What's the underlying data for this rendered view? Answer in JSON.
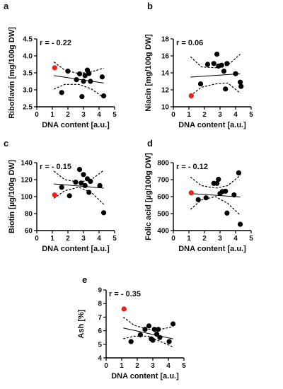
{
  "chart_data": [
    {
      "panel": "a",
      "type": "scatter",
      "corr": "r = - 0.22",
      "xlabel": "DNA content [a.u.]",
      "ylabel": "Riboflavin [mg/100g DW]",
      "xlim": [
        0,
        5
      ],
      "ylim": [
        2.5,
        4.5
      ],
      "xticks": [
        "0",
        "1",
        "2",
        "3",
        "4",
        "5"
      ],
      "yticks": [
        "2.5",
        "3.0",
        "3.5",
        "4.0",
        "4.5"
      ],
      "fit": {
        "x": [
          1.1,
          4.3
        ],
        "y": [
          3.42,
          3.2
        ]
      },
      "ci_upper": {
        "x": [
          1.1,
          1.8,
          2.7,
          3.5,
          4.3
        ],
        "y": [
          3.82,
          3.58,
          3.48,
          3.53,
          3.64
        ]
      },
      "ci_lower": {
        "x": [
          1.1,
          1.8,
          2.7,
          3.5,
          4.3
        ],
        "y": [
          3.02,
          3.16,
          3.16,
          3.03,
          2.77
        ]
      },
      "points": [
        {
          "x": 1.15,
          "y": 3.65,
          "highlight": true
        },
        {
          "x": 1.6,
          "y": 2.92
        },
        {
          "x": 2.0,
          "y": 3.55
        },
        {
          "x": 2.55,
          "y": 3.3
        },
        {
          "x": 2.75,
          "y": 3.47
        },
        {
          "x": 2.9,
          "y": 2.8
        },
        {
          "x": 3.0,
          "y": 3.25
        },
        {
          "x": 3.1,
          "y": 3.42
        },
        {
          "x": 3.25,
          "y": 3.58
        },
        {
          "x": 3.35,
          "y": 3.48
        },
        {
          "x": 3.45,
          "y": 3.25
        },
        {
          "x": 4.2,
          "y": 3.38
        },
        {
          "x": 4.3,
          "y": 2.82
        }
      ]
    },
    {
      "panel": "b",
      "type": "scatter",
      "corr": "r = 0.06",
      "xlabel": "DNA content [a.u.]",
      "ylabel": "Niacin [mg/100g DW]",
      "xlim": [
        0,
        5
      ],
      "ylim": [
        10,
        18
      ],
      "xticks": [
        "0",
        "1",
        "2",
        "3",
        "4",
        "5"
      ],
      "yticks": [
        "10",
        "12",
        "14",
        "16",
        "18"
      ],
      "fit": {
        "x": [
          1.1,
          4.3
        ],
        "y": [
          13.5,
          13.9
        ]
      },
      "ci_upper": {
        "x": [
          1.1,
          1.8,
          2.7,
          3.5,
          4.3
        ],
        "y": [
          15.9,
          14.7,
          14.6,
          14.9,
          16.2
        ]
      },
      "ci_lower": {
        "x": [
          1.1,
          1.8,
          2.7,
          3.5,
          4.3
        ],
        "y": [
          11.3,
          12.3,
          12.7,
          12.8,
          11.6
        ]
      },
      "points": [
        {
          "x": 1.15,
          "y": 11.3,
          "highlight": true
        },
        {
          "x": 1.75,
          "y": 12.7
        },
        {
          "x": 2.2,
          "y": 15.0
        },
        {
          "x": 2.6,
          "y": 15.1
        },
        {
          "x": 2.8,
          "y": 16.2
        },
        {
          "x": 2.9,
          "y": 14.8
        },
        {
          "x": 3.1,
          "y": 14.9
        },
        {
          "x": 3.25,
          "y": 14.2
        },
        {
          "x": 3.35,
          "y": 12.1
        },
        {
          "x": 3.45,
          "y": 15.1
        },
        {
          "x": 4.0,
          "y": 13.9
        },
        {
          "x": 4.3,
          "y": 12.9
        },
        {
          "x": 4.35,
          "y": 12.4
        }
      ]
    },
    {
      "panel": "c",
      "type": "scatter",
      "corr": "r = - 0.15",
      "xlabel": "DNA content [a.u.]",
      "ylabel": "Biotin [µg/100g DW]",
      "xlim": [
        0,
        5
      ],
      "ylim": [
        60,
        140
      ],
      "xticks": [
        "0",
        "1",
        "2",
        "3",
        "4",
        "5"
      ],
      "yticks": [
        "60",
        "80",
        "100",
        "120",
        "140"
      ],
      "fit": {
        "x": [
          1.1,
          4.3
        ],
        "y": [
          115,
          110
        ]
      },
      "ci_upper": {
        "x": [
          1.1,
          1.8,
          2.7,
          3.5,
          4.3
        ],
        "y": [
          130,
          120,
          117,
          120,
          131
        ]
      },
      "ci_lower": {
        "x": [
          1.1,
          1.8,
          2.7,
          3.5,
          4.3
        ],
        "y": [
          98,
          107,
          111,
          105,
          91
        ]
      },
      "points": [
        {
          "x": 1.15,
          "y": 102,
          "highlight": true
        },
        {
          "x": 1.6,
          "y": 111
        },
        {
          "x": 2.1,
          "y": 101
        },
        {
          "x": 2.5,
          "y": 117
        },
        {
          "x": 2.75,
          "y": 132
        },
        {
          "x": 2.85,
          "y": 116
        },
        {
          "x": 3.0,
          "y": 126
        },
        {
          "x": 3.1,
          "y": 113
        },
        {
          "x": 3.25,
          "y": 121
        },
        {
          "x": 3.35,
          "y": 105
        },
        {
          "x": 3.45,
          "y": 118
        },
        {
          "x": 4.05,
          "y": 113
        },
        {
          "x": 4.3,
          "y": 81
        }
      ]
    },
    {
      "panel": "d",
      "type": "scatter",
      "corr": "r = - 0.12",
      "xlabel": "DNA content [a.u.]",
      "ylabel": "Folic acid [µg/100g DW]",
      "xlim": [
        0,
        5
      ],
      "ylim": [
        400,
        800
      ],
      "xticks": [
        "0",
        "1",
        "2",
        "3",
        "4",
        "5"
      ],
      "yticks": [
        "400",
        "500",
        "600",
        "700",
        "800"
      ],
      "fit": {
        "x": [
          1.1,
          4.3
        ],
        "y": [
          618,
          598
        ]
      },
      "ci_upper": {
        "x": [
          1.1,
          1.8,
          2.7,
          3.5,
          4.3
        ],
        "y": [
          715,
          665,
          650,
          665,
          725
        ]
      },
      "ci_lower": {
        "x": [
          1.1,
          1.8,
          2.7,
          3.5,
          4.3
        ],
        "y": [
          525,
          580,
          600,
          560,
          490
        ]
      },
      "points": [
        {
          "x": 1.15,
          "y": 622,
          "highlight": true
        },
        {
          "x": 1.6,
          "y": 582
        },
        {
          "x": 2.1,
          "y": 593
        },
        {
          "x": 2.6,
          "y": 678
        },
        {
          "x": 2.8,
          "y": 678
        },
        {
          "x": 2.9,
          "y": 702
        },
        {
          "x": 3.0,
          "y": 618
        },
        {
          "x": 3.15,
          "y": 630
        },
        {
          "x": 3.35,
          "y": 632
        },
        {
          "x": 3.45,
          "y": 503
        },
        {
          "x": 3.9,
          "y": 610
        },
        {
          "x": 4.2,
          "y": 740
        },
        {
          "x": 4.3,
          "y": 437
        }
      ]
    },
    {
      "panel": "e",
      "type": "scatter",
      "corr": "r = - 0.35",
      "xlabel": "DNA content [a.u.]",
      "ylabel": "Ash [%]",
      "xlim": [
        0,
        5
      ],
      "ylim": [
        4,
        9
      ],
      "xticks": [
        "0",
        "1",
        "2",
        "3",
        "4",
        "5"
      ],
      "yticks": [
        "4",
        "5",
        "6",
        "7",
        "8",
        "9"
      ],
      "fit": {
        "x": [
          1.1,
          4.3
        ],
        "y": [
          6.2,
          5.4
        ]
      },
      "ci_upper": {
        "x": [
          1.1,
          1.8,
          2.7,
          3.5,
          4.3
        ],
        "y": [
          7.0,
          6.4,
          6.1,
          6.1,
          6.3
        ]
      },
      "ci_lower": {
        "x": [
          1.1,
          1.8,
          2.7,
          3.5,
          4.3
        ],
        "y": [
          5.4,
          5.6,
          5.6,
          5.2,
          4.8
        ]
      },
      "points": [
        {
          "x": 1.15,
          "y": 7.6,
          "highlight": true
        },
        {
          "x": 1.6,
          "y": 5.2
        },
        {
          "x": 2.2,
          "y": 5.7
        },
        {
          "x": 2.5,
          "y": 6.1
        },
        {
          "x": 2.75,
          "y": 6.35
        },
        {
          "x": 2.9,
          "y": 5.4
        },
        {
          "x": 3.0,
          "y": 5.3
        },
        {
          "x": 3.1,
          "y": 6.1
        },
        {
          "x": 3.25,
          "y": 5.75
        },
        {
          "x": 3.35,
          "y": 6.1
        },
        {
          "x": 3.45,
          "y": 5.5
        },
        {
          "x": 4.05,
          "y": 5.2
        },
        {
          "x": 4.3,
          "y": 6.5
        }
      ]
    }
  ],
  "colors": {
    "highlight": "#e8221b",
    "point": "#000000",
    "line": "#000000"
  }
}
